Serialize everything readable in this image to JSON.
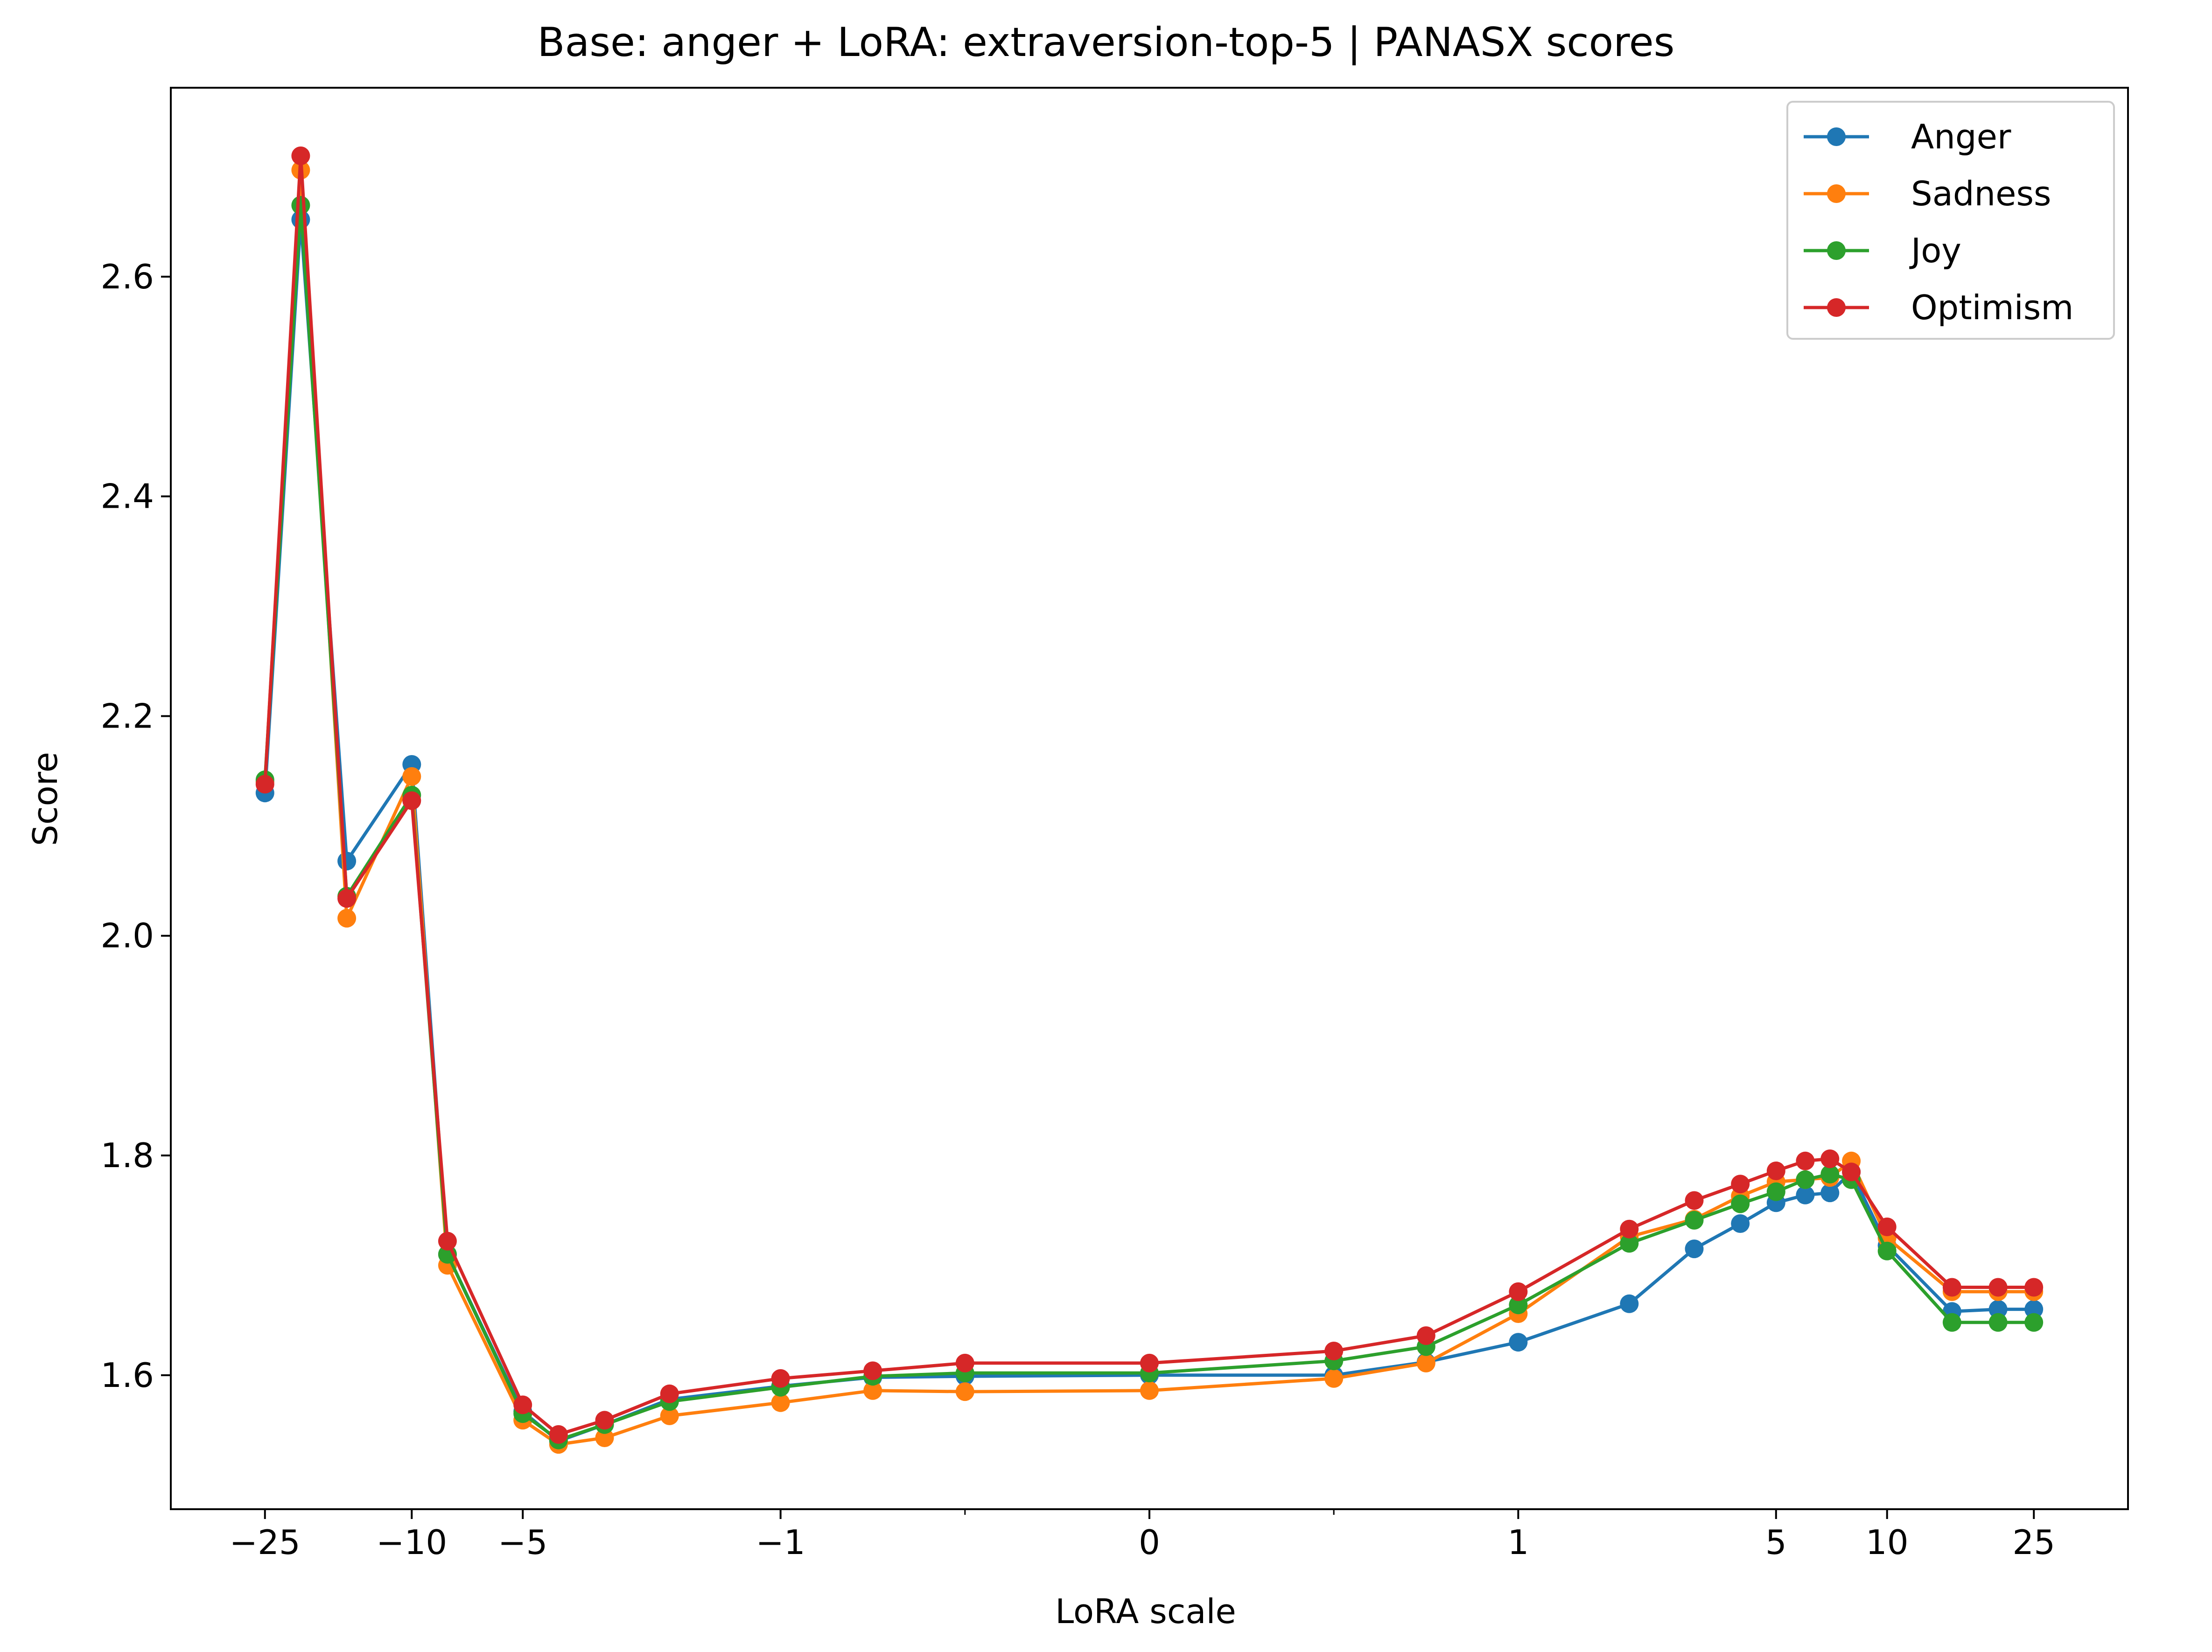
{
  "chart_data": {
    "type": "line",
    "title": "Base: anger + LoRA: extraversion-top-5 | PANASX scores",
    "xlabel": "LoRA scale",
    "ylabel": "Score",
    "xscale": "symlog",
    "ylim": [
      1.478,
      2.772
    ],
    "xlim": [
      -45,
      45
    ],
    "grid": false,
    "legend_position": "top-right",
    "x": [
      -25,
      -20,
      -15,
      -10,
      -8,
      -5,
      -4,
      -3,
      -2,
      -1,
      -0.75,
      -0.5,
      0,
      0.5,
      0.75,
      1,
      2,
      3,
      4,
      5,
      6,
      7,
      8,
      10,
      15,
      20,
      25
    ],
    "x_ticks": [
      {
        "value": -25,
        "label": "−25"
      },
      {
        "value": -10,
        "label": "−10"
      },
      {
        "value": -5,
        "label": "−5"
      },
      {
        "value": -1,
        "label": "−1"
      },
      {
        "value": 0,
        "label": "0"
      },
      {
        "value": 1,
        "label": "1"
      },
      {
        "value": 5,
        "label": "5"
      },
      {
        "value": 10,
        "label": "10"
      },
      {
        "value": 25,
        "label": "25"
      }
    ],
    "y_ticks": [
      1.6,
      1.8,
      2.0,
      2.2,
      2.4,
      2.6
    ],
    "series": [
      {
        "name": "Anger",
        "color": "#1f77b4",
        "values": [
          2.13,
          2.652,
          2.068,
          2.156,
          1.71,
          1.567,
          1.54,
          1.555,
          1.578,
          1.59,
          1.598,
          1.599,
          1.6,
          1.6,
          1.612,
          1.63,
          1.665,
          1.715,
          1.738,
          1.757,
          1.764,
          1.766,
          1.785,
          1.718,
          1.658,
          1.66,
          1.66
        ]
      },
      {
        "name": "Sadness",
        "color": "#ff7f0e",
        "values": [
          2.14,
          2.697,
          2.016,
          2.145,
          1.7,
          1.559,
          1.537,
          1.543,
          1.563,
          1.575,
          1.586,
          1.585,
          1.586,
          1.597,
          1.611,
          1.656,
          1.726,
          1.742,
          1.763,
          1.776,
          1.778,
          1.78,
          1.795,
          1.725,
          1.676,
          1.676,
          1.676
        ]
      },
      {
        "name": "Joy",
        "color": "#2ca02c",
        "values": [
          2.142,
          2.665,
          2.036,
          2.128,
          1.71,
          1.565,
          1.541,
          1.555,
          1.576,
          1.589,
          1.599,
          1.602,
          1.602,
          1.613,
          1.626,
          1.664,
          1.72,
          1.741,
          1.756,
          1.767,
          1.778,
          1.783,
          1.778,
          1.713,
          1.648,
          1.648,
          1.648
        ]
      },
      {
        "name": "Optimism",
        "color": "#d62728",
        "values": [
          2.138,
          2.71,
          2.034,
          2.123,
          1.722,
          1.573,
          1.546,
          1.559,
          1.583,
          1.597,
          1.604,
          1.611,
          1.611,
          1.622,
          1.636,
          1.676,
          1.733,
          1.759,
          1.774,
          1.786,
          1.795,
          1.797,
          1.785,
          1.735,
          1.68,
          1.68,
          1.68
        ]
      }
    ]
  }
}
